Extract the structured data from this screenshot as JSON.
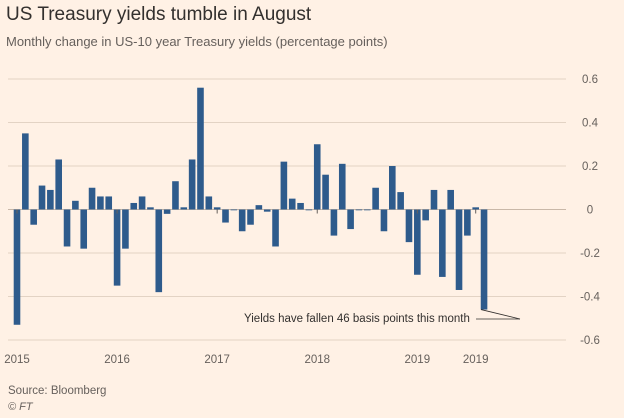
{
  "header": {
    "title": "US Treasury yields tumble in August",
    "subtitle": "Monthly change in US-10 year Treasury yields (percentage points)"
  },
  "footer": {
    "source": "Source: Bloomberg",
    "brand": "© FT"
  },
  "colors": {
    "background": "#fff1e5",
    "bar": "#2e5b8c",
    "grid": "#e3d3c4",
    "text": "#33302e"
  },
  "chart_data": {
    "type": "bar",
    "title": "US Treasury yields tumble in August",
    "subtitle": "Monthly change in US-10 year Treasury yields (percentage points)",
    "xlabel": "",
    "ylabel": "",
    "ylim": [
      -0.6,
      0.6
    ],
    "yticks": [
      0.6,
      0.4,
      0.2,
      0,
      -0.2,
      -0.4,
      -0.6
    ],
    "ytick_labels": [
      "0.6",
      "0.4",
      "0.2",
      "0",
      "-0.2",
      "-0.4",
      "-0.6"
    ],
    "grid": true,
    "axis_side": "right",
    "start": "2015-01",
    "xtick_labels": [
      {
        "label": "2015",
        "month_index": 0
      },
      {
        "label": "2016",
        "month_index": 12
      },
      {
        "label": "2017",
        "month_index": 24
      },
      {
        "label": "2018",
        "month_index": 36
      },
      {
        "label": "2019",
        "month_index": 48
      },
      {
        "label": "2019",
        "month_index": 55
      }
    ],
    "values": [
      -0.53,
      0.35,
      -0.07,
      0.11,
      0.09,
      0.23,
      -0.17,
      0.04,
      -0.18,
      0.1,
      0.06,
      0.06,
      -0.35,
      -0.18,
      0.03,
      0.06,
      0.01,
      -0.38,
      -0.02,
      0.13,
      0.01,
      0.23,
      0.56,
      0.06,
      0.01,
      -0.06,
      0.0,
      -0.1,
      -0.07,
      0.02,
      -0.01,
      -0.17,
      0.22,
      0.05,
      0.03,
      0.0,
      0.3,
      0.16,
      -0.12,
      0.21,
      -0.09,
      0.0,
      0.0,
      0.1,
      -0.1,
      0.2,
      0.08,
      -0.15,
      -0.3,
      -0.05,
      0.09,
      -0.31,
      0.09,
      -0.37,
      -0.12,
      0.01,
      -0.46
    ],
    "annotations": [
      {
        "text": "Yields have fallen 46 basis points this month",
        "month_index": 56,
        "value": -0.46
      }
    ]
  }
}
